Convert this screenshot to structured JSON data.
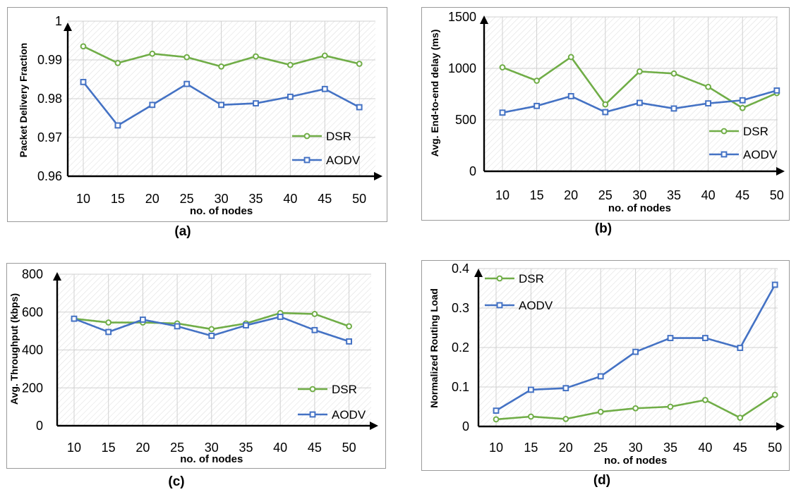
{
  "colors": {
    "DSR": "#70ad47",
    "AODV": "#4472c4"
  },
  "chart_data": [
    {
      "id": "a",
      "type": "line",
      "caption": "(a)",
      "xlabel": "no. of nodes",
      "ylabel": "Packet Delivery Fraction",
      "categories": [
        "10",
        "15",
        "20",
        "25",
        "30",
        "35",
        "40",
        "45",
        "50"
      ],
      "ylim": [
        0.96,
        1
      ],
      "yticks": [
        0.96,
        0.97,
        0.98,
        0.99,
        1
      ],
      "ytick_labels": [
        "0.96",
        "0.97",
        "0.98",
        "0.99",
        "1"
      ],
      "legend_position": "right",
      "grid": "hatched",
      "series": [
        {
          "name": "DSR",
          "marker": "circle",
          "values": [
            0.9935,
            0.9892,
            0.9916,
            0.9907,
            0.9883,
            0.9909,
            0.9887,
            0.9911,
            0.989
          ]
        },
        {
          "name": "AODV",
          "marker": "square",
          "values": [
            0.9843,
            0.9731,
            0.9784,
            0.9838,
            0.9784,
            0.9788,
            0.9805,
            0.9825,
            0.9778
          ]
        }
      ]
    },
    {
      "id": "b",
      "type": "line",
      "caption": "(b)",
      "xlabel": "no. of nodes",
      "ylabel": "Avg. End-to-end delay (ms)",
      "categories": [
        "10",
        "15",
        "20",
        "25",
        "30",
        "35",
        "40",
        "45",
        "50"
      ],
      "ylim": [
        0,
        1500
      ],
      "yticks": [
        0,
        500,
        1000,
        1500
      ],
      "ytick_labels": [
        "0",
        "500",
        "1000",
        "1500"
      ],
      "legend_position": "bottom-right",
      "grid": "hatched",
      "series": [
        {
          "name": "DSR",
          "marker": "circle",
          "values": [
            1010,
            880,
            1110,
            650,
            970,
            950,
            820,
            615,
            760
          ]
        },
        {
          "name": "AODV",
          "marker": "square",
          "values": [
            570,
            635,
            730,
            575,
            665,
            610,
            660,
            690,
            785
          ]
        }
      ]
    },
    {
      "id": "c",
      "type": "line",
      "caption": "(c)",
      "xlabel": "no. of nodes",
      "ylabel": "Avg. Throughput (kbps)",
      "categories": [
        "10",
        "15",
        "20",
        "25",
        "30",
        "35",
        "40",
        "45",
        "50"
      ],
      "ylim": [
        0,
        800
      ],
      "yticks": [
        0,
        200,
        400,
        600,
        800
      ],
      "ytick_labels": [
        "0",
        "200",
        "400",
        "600",
        "800"
      ],
      "legend_position": "bottom-right",
      "grid": "hatched",
      "series": [
        {
          "name": "DSR",
          "marker": "circle",
          "values": [
            565,
            545,
            545,
            540,
            510,
            540,
            595,
            590,
            525
          ]
        },
        {
          "name": "AODV",
          "marker": "square",
          "values": [
            565,
            495,
            560,
            525,
            475,
            530,
            575,
            505,
            445
          ]
        }
      ]
    },
    {
      "id": "d",
      "type": "line",
      "caption": "(d)",
      "xlabel": "no. of nodes",
      "ylabel": "Normalized Routing Load",
      "categories": [
        "10",
        "15",
        "20",
        "25",
        "30",
        "35",
        "40",
        "45",
        "50"
      ],
      "ylim": [
        0,
        0.4
      ],
      "yticks": [
        0,
        0.1,
        0.2,
        0.3,
        0.4
      ],
      "ytick_labels": [
        "0",
        "0.1",
        "0.2",
        "0.3",
        "0.4"
      ],
      "legend_position": "top-left",
      "grid": "hatched",
      "series": [
        {
          "name": "DSR",
          "marker": "circle",
          "values": [
            0.018,
            0.025,
            0.019,
            0.037,
            0.046,
            0.05,
            0.067,
            0.022,
            0.08
          ]
        },
        {
          "name": "AODV",
          "marker": "square",
          "values": [
            0.04,
            0.093,
            0.097,
            0.127,
            0.189,
            0.224,
            0.224,
            0.199,
            0.359
          ]
        }
      ]
    }
  ]
}
